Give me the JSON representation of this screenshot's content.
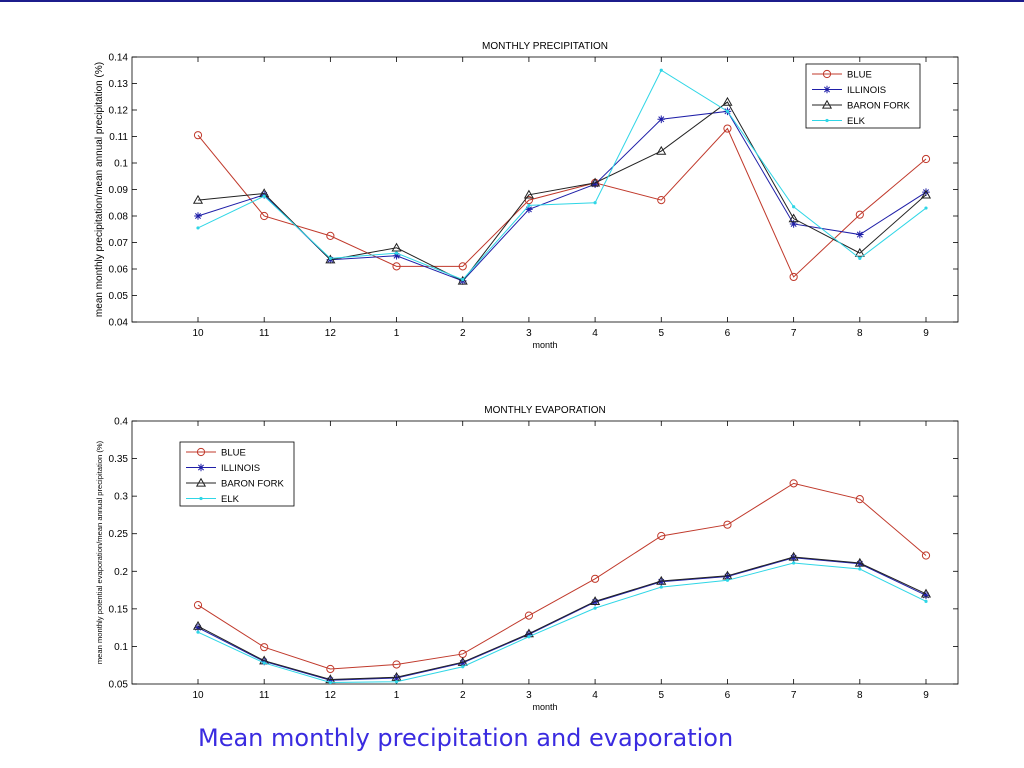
{
  "caption": "Mean monthly precipitation and evaporation",
  "colors": {
    "header_rule": "#1c1c8c",
    "caption": "#3a2be0",
    "BLUE": "#c0392b",
    "ILLINOIS": "#1f1fa8",
    "BARON FORK": "#222222",
    "ELK": "#2fd6e6"
  },
  "chart_data": [
    {
      "type": "line",
      "title": "MONTHLY PRECIPITATION",
      "xlabel": "month",
      "ylabel": "mean monthly precipitation/mean annual precipitation (%)",
      "categories": [
        "10",
        "11",
        "12",
        "1",
        "2",
        "3",
        "4",
        "5",
        "6",
        "7",
        "8",
        "9"
      ],
      "ylim": [
        0.04,
        0.14
      ],
      "yticks": [
        0.04,
        0.05,
        0.06,
        0.07,
        0.08,
        0.09,
        0.1,
        0.11,
        0.12,
        0.13,
        0.14
      ],
      "ytick_labels": [
        "0.04",
        "0.05",
        "0.06",
        "0.07",
        "0.08",
        "0.09",
        "0.1",
        "0.11",
        "0.12",
        "0.13",
        "0.14"
      ],
      "legend_position": "top-right",
      "series": [
        {
          "name": "BLUE",
          "marker": "circle",
          "values": [
            0.1105,
            0.08,
            0.0725,
            0.061,
            0.061,
            0.086,
            0.0925,
            0.086,
            0.113,
            0.057,
            0.0805,
            0.1015
          ]
        },
        {
          "name": "ILLINOIS",
          "marker": "star",
          "values": [
            0.08,
            0.088,
            0.0635,
            0.065,
            0.0555,
            0.0825,
            0.092,
            0.1165,
            0.1195,
            0.077,
            0.073,
            0.089
          ]
        },
        {
          "name": "BARON FORK",
          "marker": "triangle",
          "values": [
            0.086,
            0.0885,
            0.0635,
            0.068,
            0.0555,
            0.088,
            0.0925,
            0.1045,
            0.123,
            0.079,
            0.066,
            0.088
          ]
        },
        {
          "name": "ELK",
          "marker": "point",
          "values": [
            0.0755,
            0.0875,
            0.064,
            0.066,
            0.056,
            0.084,
            0.085,
            0.135,
            0.1195,
            0.0835,
            0.064,
            0.083
          ]
        }
      ]
    },
    {
      "type": "line",
      "title": "MONTHLY EVAPORATION",
      "xlabel": "month",
      "ylabel": "mean monthly potential evaporation/mean annual precipitation (%)",
      "categories": [
        "10",
        "11",
        "12",
        "1",
        "2",
        "3",
        "4",
        "5",
        "6",
        "7",
        "8",
        "9"
      ],
      "ylim": [
        0.05,
        0.4
      ],
      "yticks": [
        0.05,
        0.1,
        0.15,
        0.2,
        0.25,
        0.3,
        0.35,
        0.4
      ],
      "ytick_labels": [
        "0.05",
        "0.1",
        "0.15",
        "0.2",
        "0.25",
        "0.3",
        "0.35",
        "0.4"
      ],
      "legend_position": "top-left",
      "series": [
        {
          "name": "BLUE",
          "marker": "circle",
          "values": [
            0.155,
            0.099,
            0.07,
            0.076,
            0.09,
            0.141,
            0.19,
            0.247,
            0.262,
            0.317,
            0.296,
            0.221
          ]
        },
        {
          "name": "ILLINOIS",
          "marker": "star",
          "values": [
            0.125,
            0.08,
            0.055,
            0.058,
            0.078,
            0.116,
            0.159,
            0.186,
            0.193,
            0.218,
            0.21,
            0.168
          ]
        },
        {
          "name": "BARON FORK",
          "marker": "triangle",
          "values": [
            0.127,
            0.081,
            0.056,
            0.059,
            0.079,
            0.117,
            0.16,
            0.187,
            0.194,
            0.219,
            0.211,
            0.17
          ]
        },
        {
          "name": "ELK",
          "marker": "point",
          "values": [
            0.119,
            0.078,
            0.052,
            0.053,
            0.073,
            0.113,
            0.151,
            0.179,
            0.188,
            0.211,
            0.203,
            0.16
          ]
        }
      ]
    }
  ]
}
